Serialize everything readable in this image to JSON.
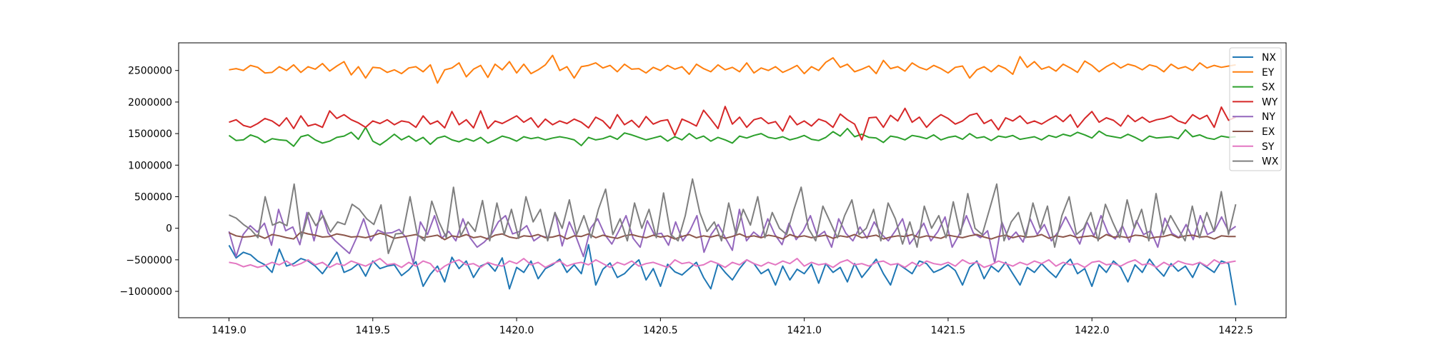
{
  "chart_data": {
    "type": "line",
    "title": "",
    "xlabel": "",
    "ylabel": "",
    "xlim": [
      1418.825,
      1422.675
    ],
    "ylim": [
      -1418000,
      2938000
    ],
    "x_range": [
      1419.0,
      1422.5
    ],
    "x_ticks": [
      1419.0,
      1419.5,
      1420.0,
      1420.5,
      1421.0,
      1421.5,
      1422.0,
      1422.5
    ],
    "x_tick_labels": [
      "1419.0",
      "1419.5",
      "1420.0",
      "1420.5",
      "1421.0",
      "1421.5",
      "1422.0",
      "1422.5"
    ],
    "y_ticks": [
      -1000000,
      -500000,
      0,
      500000,
      1000000,
      1500000,
      2000000,
      2500000
    ],
    "y_tick_labels": [
      "−1000000",
      "−500000",
      "0",
      "500000",
      "1000000",
      "1500000",
      "2000000",
      "2500000"
    ],
    "grid": false,
    "legend_placement": "top-right",
    "value_multiplier": 1000,
    "series": [
      {
        "name": "NX",
        "color": "#1f77b4",
        "values": [
          -270,
          -470,
          -380,
          -420,
          -520,
          -580,
          -700,
          -330,
          -600,
          -560,
          -480,
          -520,
          -600,
          -720,
          -560,
          -380,
          -700,
          -650,
          -560,
          -760,
          -520,
          -640,
          -600,
          -580,
          -750,
          -660,
          -530,
          -920,
          -730,
          -600,
          -850,
          -460,
          -640,
          -520,
          -780,
          -600,
          -550,
          -680,
          -470,
          -960,
          -620,
          -700,
          -520,
          -800,
          -640,
          -580,
          -490,
          -700,
          -580,
          -720,
          -260,
          -900,
          -650,
          -550,
          -780,
          -720,
          -600,
          -500,
          -820,
          -640,
          -920,
          -570,
          -690,
          -740,
          -640,
          -540,
          -780,
          -960,
          -560,
          -700,
          -820,
          -640,
          -500,
          -560,
          -720,
          -650,
          -900,
          -600,
          -820,
          -650,
          -720,
          -570,
          -870,
          -560,
          -700,
          -620,
          -850,
          -560,
          -780,
          -640,
          -490,
          -720,
          -900,
          -560,
          -640,
          -720,
          -520,
          -560,
          -700,
          -650,
          -580,
          -670,
          -900,
          -620,
          -520,
          -800,
          -600,
          -690,
          -540,
          -720,
          -900,
          -620,
          -700,
          -560,
          -680,
          -780,
          -600,
          -490,
          -720,
          -640,
          -920,
          -580,
          -700,
          -520,
          -620,
          -850,
          -580,
          -700,
          -490,
          -640,
          -760,
          -560,
          -680,
          -600,
          -780,
          -540,
          -620,
          -700,
          -520,
          -560,
          -1220
        ]
      },
      {
        "name": "EY",
        "color": "#ff7f0e",
        "values": [
          2510,
          2530,
          2500,
          2580,
          2550,
          2460,
          2470,
          2560,
          2500,
          2590,
          2470,
          2560,
          2520,
          2610,
          2490,
          2570,
          2640,
          2430,
          2560,
          2380,
          2550,
          2540,
          2470,
          2510,
          2450,
          2540,
          2560,
          2480,
          2590,
          2300,
          2510,
          2540,
          2620,
          2400,
          2520,
          2580,
          2390,
          2600,
          2510,
          2640,
          2460,
          2600,
          2450,
          2510,
          2590,
          2740,
          2500,
          2560,
          2380,
          2560,
          2580,
          2620,
          2540,
          2580,
          2480,
          2600,
          2520,
          2530,
          2460,
          2550,
          2500,
          2580,
          2520,
          2560,
          2440,
          2600,
          2530,
          2480,
          2590,
          2510,
          2550,
          2480,
          2620,
          2460,
          2540,
          2500,
          2560,
          2470,
          2520,
          2580,
          2450,
          2560,
          2500,
          2630,
          2700,
          2550,
          2600,
          2480,
          2520,
          2570,
          2450,
          2660,
          2530,
          2560,
          2490,
          2620,
          2550,
          2510,
          2580,
          2530,
          2460,
          2550,
          2570,
          2380,
          2510,
          2560,
          2480,
          2580,
          2530,
          2440,
          2720,
          2550,
          2640,
          2520,
          2560,
          2490,
          2600,
          2540,
          2470,
          2650,
          2580,
          2480,
          2560,
          2620,
          2540,
          2600,
          2570,
          2510,
          2590,
          2560,
          2480,
          2600,
          2530,
          2560,
          2500,
          2620,
          2540,
          2580,
          2550,
          2570,
          2590
        ]
      },
      {
        "name": "SX",
        "color": "#2ca02c",
        "values": [
          1470,
          1390,
          1400,
          1480,
          1440,
          1360,
          1420,
          1400,
          1390,
          1300,
          1450,
          1480,
          1400,
          1350,
          1380,
          1440,
          1460,
          1520,
          1410,
          1600,
          1380,
          1320,
          1400,
          1490,
          1400,
          1460,
          1380,
          1440,
          1330,
          1430,
          1460,
          1400,
          1370,
          1420,
          1380,
          1440,
          1350,
          1400,
          1460,
          1430,
          1380,
          1450,
          1420,
          1440,
          1400,
          1430,
          1450,
          1430,
          1400,
          1310,
          1440,
          1400,
          1420,
          1460,
          1410,
          1510,
          1480,
          1440,
          1400,
          1430,
          1460,
          1380,
          1450,
          1400,
          1500,
          1420,
          1460,
          1380,
          1440,
          1400,
          1350,
          1460,
          1430,
          1470,
          1500,
          1440,
          1420,
          1450,
          1400,
          1430,
          1470,
          1410,
          1390,
          1440,
          1530,
          1460,
          1580,
          1450,
          1490,
          1440,
          1430,
          1360,
          1460,
          1440,
          1400,
          1470,
          1450,
          1420,
          1480,
          1400,
          1440,
          1460,
          1410,
          1500,
          1430,
          1450,
          1390,
          1460,
          1440,
          1470,
          1410,
          1430,
          1450,
          1400,
          1470,
          1440,
          1490,
          1460,
          1520,
          1480,
          1430,
          1540,
          1470,
          1450,
          1430,
          1490,
          1440,
          1380,
          1460,
          1430,
          1440,
          1450,
          1420,
          1560,
          1450,
          1480,
          1430,
          1410,
          1460,
          1440,
          1450
        ]
      },
      {
        "name": "WY",
        "color": "#d62728",
        "values": [
          1680,
          1720,
          1630,
          1600,
          1660,
          1740,
          1700,
          1620,
          1750,
          1580,
          1780,
          1620,
          1650,
          1600,
          1860,
          1740,
          1800,
          1720,
          1670,
          1600,
          1700,
          1660,
          1720,
          1640,
          1700,
          1680,
          1600,
          1780,
          1650,
          1700,
          1590,
          1850,
          1640,
          1720,
          1590,
          1860,
          1580,
          1700,
          1660,
          1720,
          1780,
          1680,
          1750,
          1600,
          1730,
          1640,
          1700,
          1660,
          1730,
          1680,
          1590,
          1760,
          1700,
          1580,
          1800,
          1640,
          1710,
          1600,
          1770,
          1650,
          1700,
          1720,
          1470,
          1730,
          1680,
          1620,
          1870,
          1730,
          1580,
          1930,
          1650,
          1760,
          1600,
          1720,
          1750,
          1660,
          1690,
          1540,
          1780,
          1640,
          1700,
          1620,
          1730,
          1690,
          1600,
          1810,
          1720,
          1650,
          1400,
          1750,
          1760,
          1600,
          1790,
          1700,
          1900,
          1680,
          1760,
          1600,
          1720,
          1800,
          1740,
          1650,
          1700,
          1790,
          1820,
          1660,
          1720,
          1560,
          1750,
          1700,
          1780,
          1660,
          1700,
          1650,
          1720,
          1780,
          1690,
          1800,
          1600,
          1740,
          1850,
          1680,
          1750,
          1710,
          1620,
          1790,
          1690,
          1760,
          1680,
          1720,
          1740,
          1780,
          1700,
          1660,
          1800,
          1730,
          1790,
          1600,
          1920,
          1710,
          1760
        ]
      },
      {
        "name": "NY",
        "color": "#9467bd",
        "values": [
          -50,
          -450,
          -100,
          40,
          -60,
          80,
          -270,
          300,
          -40,
          20,
          -260,
          250,
          -200,
          280,
          -80,
          -200,
          -300,
          -400,
          -150,
          150,
          -200,
          -30,
          -80,
          -70,
          -20,
          -150,
          -550,
          100,
          -100,
          200,
          -160,
          -50,
          -200,
          150,
          -150,
          -300,
          -220,
          -100,
          100,
          200,
          -90,
          -50,
          40,
          -200,
          -120,
          -150,
          250,
          -280,
          100,
          -150,
          -450,
          0,
          150,
          -100,
          -250,
          -40,
          200,
          -160,
          -300,
          120,
          -100,
          -80,
          -270,
          100,
          -200,
          -40,
          200,
          -380,
          -100,
          60,
          -150,
          -350,
          300,
          -200,
          -60,
          -150,
          150,
          -100,
          -260,
          80,
          -180,
          -40,
          200,
          -130,
          -50,
          -300,
          150,
          -80,
          -200,
          20,
          -160,
          100,
          -90,
          -200,
          -40,
          150,
          -250,
          -100,
          80,
          -200,
          -50,
          180,
          -300,
          -100,
          200,
          -80,
          -150,
          -40,
          -550,
          100,
          -180,
          -60,
          -220,
          150,
          -100,
          60,
          -200,
          -50,
          180,
          -40,
          -250,
          100,
          -120,
          200,
          -80,
          -170,
          40,
          -220,
          120,
          -100,
          -40,
          -300,
          160,
          -80,
          -150,
          60,
          -180,
          200,
          -100,
          -40,
          180,
          -50,
          30
        ]
      },
      {
        "name": "EX",
        "color": "#8c564b",
        "values": [
          -70,
          -120,
          -140,
          -130,
          -110,
          -160,
          -100,
          -120,
          -150,
          -170,
          -60,
          -90,
          -110,
          -140,
          -130,
          -90,
          -110,
          -140,
          -130,
          -150,
          -120,
          -80,
          -110,
          -160,
          -140,
          -120,
          -100,
          -150,
          -130,
          -110,
          -180,
          -120,
          -140,
          -100,
          -150,
          -130,
          -170,
          -110,
          -90,
          -140,
          -160,
          -120,
          -130,
          -100,
          -150,
          -140,
          -110,
          -170,
          -120,
          -130,
          -90,
          -150,
          -110,
          -140,
          -160,
          -120,
          -100,
          -130,
          -150,
          -110,
          -140,
          -120,
          -170,
          -130,
          -100,
          -150,
          -120,
          -140,
          -110,
          -160,
          -130,
          -90,
          -140,
          -120,
          -150,
          -110,
          -130,
          -170,
          -100,
          -140,
          -120,
          -150,
          -130,
          -110,
          -160,
          -120,
          -140,
          -100,
          -150,
          -130,
          -110,
          -170,
          -140,
          -120,
          -130,
          -100,
          -150,
          -120,
          -140,
          -160,
          -110,
          -130,
          -150,
          -120,
          -100,
          -140,
          -170,
          -130,
          -110,
          -150,
          -120,
          -140,
          -130,
          -100,
          -160,
          -120,
          -140,
          -110,
          -150,
          -130,
          -120,
          -170,
          -100,
          -140,
          -130,
          -150,
          -110,
          -120,
          -160,
          -140,
          -130,
          -100,
          -150,
          -120,
          -110,
          -140,
          -130,
          -170,
          -120,
          -130,
          -130
        ]
      },
      {
        "name": "SY",
        "color": "#e377c2",
        "values": [
          -540,
          -560,
          -610,
          -580,
          -620,
          -590,
          -540,
          -580,
          -520,
          -600,
          -560,
          -500,
          -580,
          -540,
          -620,
          -560,
          -590,
          -520,
          -560,
          -600,
          -540,
          -480,
          -580,
          -560,
          -620,
          -540,
          -600,
          -520,
          -560,
          -690,
          -600,
          -540,
          -500,
          -580,
          -560,
          -620,
          -540,
          -580,
          -600,
          -520,
          -560,
          -480,
          -580,
          -540,
          -620,
          -560,
          -520,
          -600,
          -560,
          -540,
          -580,
          -500,
          -560,
          -620,
          -540,
          -580,
          -520,
          -600,
          -560,
          -540,
          -580,
          -620,
          -500,
          -560,
          -540,
          -600,
          -580,
          -520,
          -560,
          -620,
          -540,
          -580,
          -500,
          -560,
          -600,
          -540,
          -580,
          -520,
          -560,
          -480,
          -600,
          -540,
          -580,
          -560,
          -620,
          -540,
          -500,
          -580,
          -560,
          -600,
          -540,
          -520,
          -580,
          -560,
          -620,
          -540,
          -600,
          -520,
          -560,
          -580,
          -540,
          -600,
          -500,
          -560,
          -540,
          -620,
          -580,
          -520,
          -560,
          -600,
          -540,
          -580,
          -520,
          -560,
          -500,
          -600,
          -540,
          -580,
          -560,
          -620,
          -540,
          -520,
          -580,
          -560,
          -600,
          -540,
          -500,
          -580,
          -560,
          -620,
          -540,
          -600,
          -520,
          -560,
          -580,
          -540,
          -600,
          -500,
          -560,
          -540,
          -520
        ]
      },
      {
        "name": "WX",
        "color": "#7f7f7f",
        "values": [
          210,
          160,
          60,
          -20,
          -150,
          500,
          50,
          100,
          40,
          700,
          -160,
          250,
          40,
          200,
          -60,
          100,
          60,
          380,
          300,
          150,
          60,
          370,
          -400,
          -90,
          -80,
          500,
          -100,
          -200,
          430,
          100,
          -150,
          650,
          -120,
          100,
          -50,
          440,
          -200,
          400,
          -100,
          300,
          -160,
          500,
          100,
          300,
          -200,
          250,
          0,
          450,
          -100,
          200,
          -150,
          300,
          620,
          -100,
          150,
          -200,
          400,
          0,
          300,
          -150,
          560,
          -100,
          -200,
          200,
          780,
          250,
          -50,
          100,
          -200,
          400,
          -100,
          300,
          50,
          500,
          -150,
          250,
          0,
          -100,
          300,
          650,
          0,
          -200,
          350,
          100,
          -150,
          200,
          450,
          -100,
          0,
          300,
          -200,
          400,
          150,
          -250,
          100,
          -300,
          350,
          0,
          200,
          -150,
          420,
          -100,
          550,
          0,
          -100,
          300,
          700,
          -200,
          100,
          250,
          -150,
          400,
          0,
          350,
          -300,
          200,
          500,
          -100,
          0,
          250,
          -200,
          380,
          100,
          -150,
          450,
          0,
          300,
          -200,
          550,
          -100,
          200,
          0,
          -200,
          350,
          -150,
          250,
          -50,
          580,
          -100,
          380
        ]
      }
    ]
  }
}
